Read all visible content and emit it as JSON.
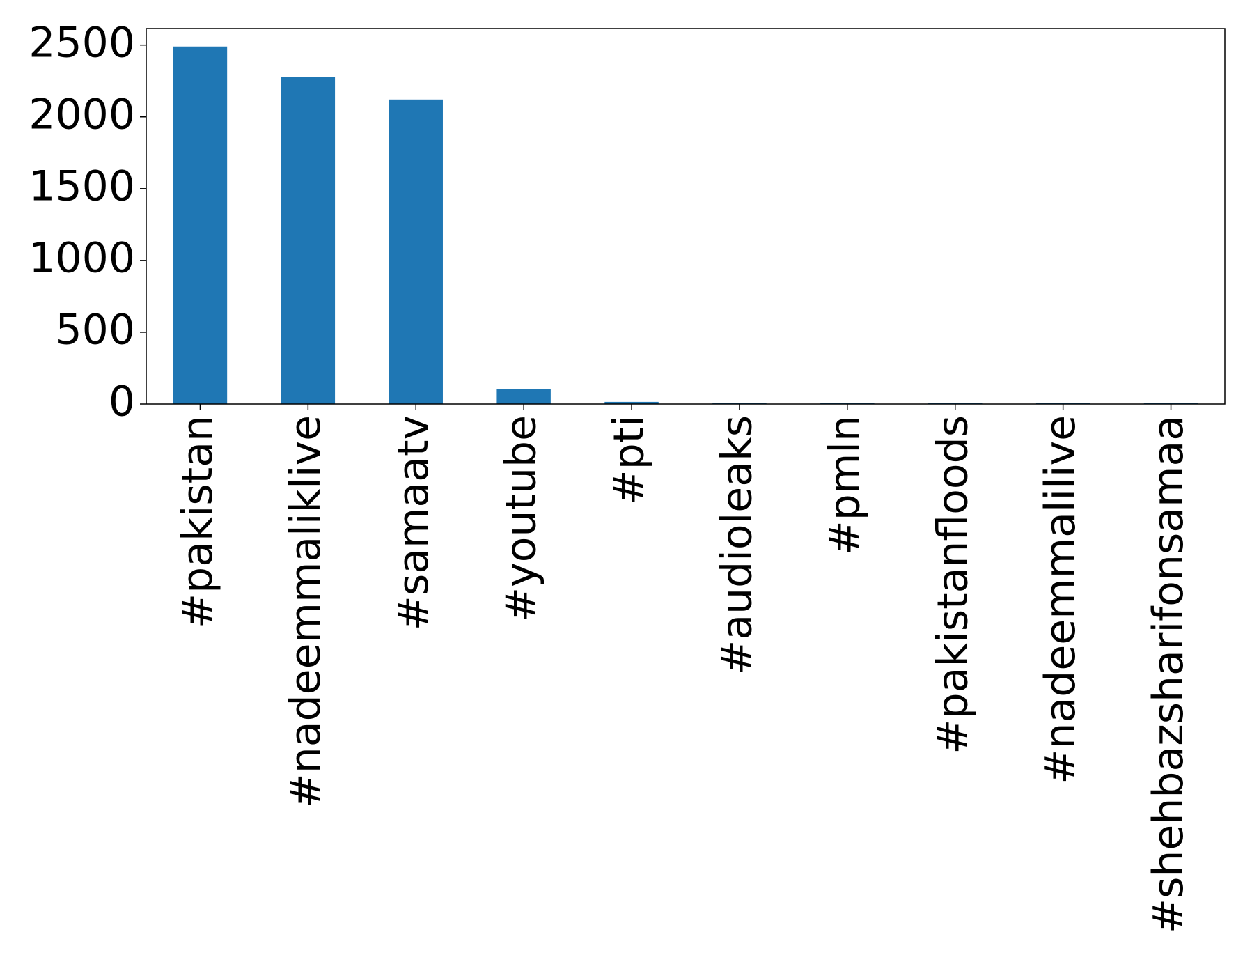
{
  "chart_data": {
    "type": "bar",
    "categories": [
      "#pakistan",
      "#nadeemmaliklive",
      "#samaatv",
      "#youtube",
      "#pti",
      "#audioleaks",
      "#pmln",
      "#pakistanfloods",
      "#nadeemmalilive",
      "#shehbazsharifonsamaa"
    ],
    "values": [
      2490,
      2277,
      2121,
      106,
      15,
      6,
      6,
      6,
      6,
      6
    ],
    "color": "#1f77b4",
    "ylim": [
      0,
      2615
    ],
    "yticks": [
      0,
      500,
      1000,
      1500,
      2000,
      2500
    ],
    "grid": false
  }
}
